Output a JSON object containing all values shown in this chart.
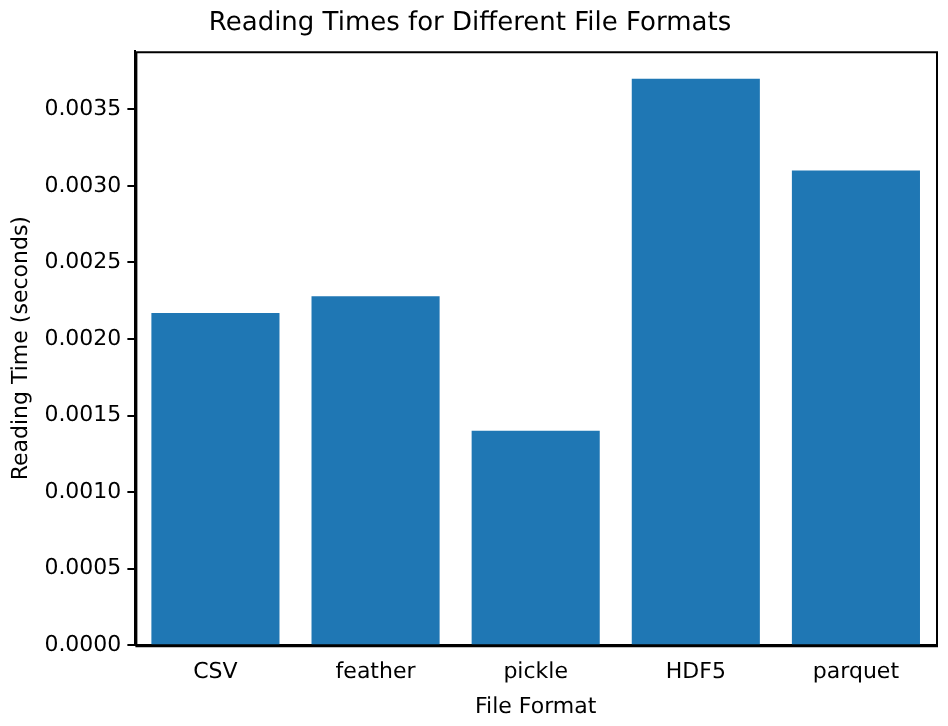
{
  "chart_data": {
    "type": "bar",
    "title": "Reading Times for Different File Formats",
    "xlabel": "File Format",
    "ylabel": "Reading Time (seconds)",
    "categories": [
      "CSV",
      "feather",
      "pickle",
      "HDF5",
      "parquet"
    ],
    "values": [
      0.00217,
      0.00228,
      0.0014,
      0.0037,
      0.0031
    ],
    "color": "#1f77b4",
    "ylim": [
      0,
      0.00388
    ],
    "yticks": [
      {
        "value": 0,
        "label": "0.0000"
      },
      0.0005,
      {
        "value": 0.001,
        "label": "0.0010"
      },
      0.0015,
      {
        "value": 0.002,
        "label": "0.0020"
      },
      0.0025,
      {
        "value": 0.003,
        "label": "0.0030"
      },
      0.0035
    ],
    "grid": false,
    "legend": false
  }
}
